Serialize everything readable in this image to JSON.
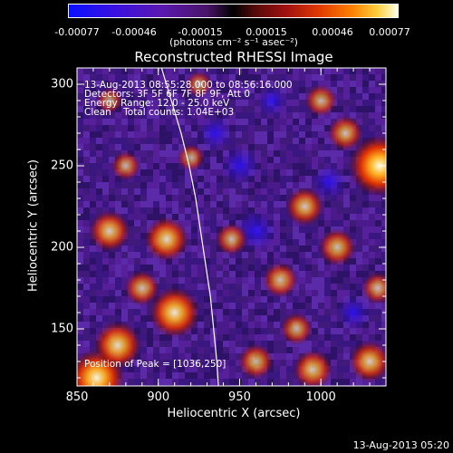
{
  "chart_data": {
    "type": "heatmap",
    "title": "Reconstructed RHESSI Image",
    "xlabel": "Heliocentric X (arcsec)",
    "ylabel": "Heliocentric Y (arcsec)",
    "xlim": [
      850,
      1040
    ],
    "ylim": [
      115,
      310
    ],
    "x_ticks": [
      850,
      900,
      950,
      1000
    ],
    "y_ticks": [
      150,
      200,
      250,
      300
    ],
    "colorbar": {
      "ticks": [
        "-0.00077",
        "-0.00046",
        "-0.00015",
        "0.00015",
        "0.00046",
        "0.00077"
      ],
      "range": [
        -0.00077,
        0.00077
      ],
      "unit_label": "(photons cm⁻² s⁻¹ asec⁻²)"
    },
    "annotations": {
      "time_range": "13-Aug-2013 08:55:28.000 to 08:56:16.000",
      "detectors": "Detectors: 3F 5F 6F 7F 8F 9F, Att 0",
      "energy_range": "Energy Range: 12.0 - 25.0 keV",
      "clean_line": "Clean    Total counts: 1.04E+03",
      "peak": "Position of Peak = [1036,250]"
    },
    "peak_position": [
      1036,
      250
    ],
    "limb_curve": [
      [
        902,
        310
      ],
      [
        908,
        290
      ],
      [
        914,
        270
      ],
      [
        919,
        250
      ],
      [
        923,
        230
      ],
      [
        926,
        210
      ],
      [
        929,
        190
      ],
      [
        932,
        170
      ],
      [
        934,
        150
      ],
      [
        936,
        130
      ],
      [
        937,
        115
      ]
    ],
    "hot_spots": [
      {
        "x": 1036,
        "y": 250,
        "value": 0.00077
      },
      {
        "x": 862,
        "y": 120,
        "value": 0.0007
      },
      {
        "x": 910,
        "y": 160,
        "value": 0.0006
      },
      {
        "x": 875,
        "y": 140,
        "value": 0.00055
      },
      {
        "x": 905,
        "y": 205,
        "value": 0.0005
      },
      {
        "x": 870,
        "y": 210,
        "value": 0.00045
      },
      {
        "x": 990,
        "y": 225,
        "value": 0.0004
      },
      {
        "x": 1010,
        "y": 200,
        "value": 0.00038
      },
      {
        "x": 995,
        "y": 125,
        "value": 0.00042
      },
      {
        "x": 1030,
        "y": 130,
        "value": 0.00045
      },
      {
        "x": 975,
        "y": 180,
        "value": 0.00035
      },
      {
        "x": 960,
        "y": 130,
        "value": 0.00035
      },
      {
        "x": 1015,
        "y": 270,
        "value": 0.00035
      },
      {
        "x": 1000,
        "y": 290,
        "value": 0.0003
      },
      {
        "x": 945,
        "y": 205,
        "value": 0.0003
      },
      {
        "x": 880,
        "y": 250,
        "value": 0.00025
      },
      {
        "x": 920,
        "y": 255,
        "value": 0.00022
      },
      {
        "x": 925,
        "y": 300,
        "value": 0.0002
      },
      {
        "x": 870,
        "y": 290,
        "value": 0.0002
      },
      {
        "x": 1035,
        "y": 175,
        "value": 0.0003
      },
      {
        "x": 985,
        "y": 150,
        "value": 0.0003
      },
      {
        "x": 890,
        "y": 175,
        "value": 0.00035
      }
    ],
    "cold_spots": [
      {
        "x": 950,
        "y": 250,
        "value": -0.0003
      },
      {
        "x": 960,
        "y": 210,
        "value": -0.00035
      },
      {
        "x": 1020,
        "y": 160,
        "value": -0.00025
      },
      {
        "x": 1005,
        "y": 240,
        "value": -0.00025
      },
      {
        "x": 970,
        "y": 290,
        "value": -0.0002
      },
      {
        "x": 935,
        "y": 270,
        "value": -0.00025
      }
    ]
  },
  "footer": {
    "timestamp": "13-Aug-2013 05:20"
  }
}
